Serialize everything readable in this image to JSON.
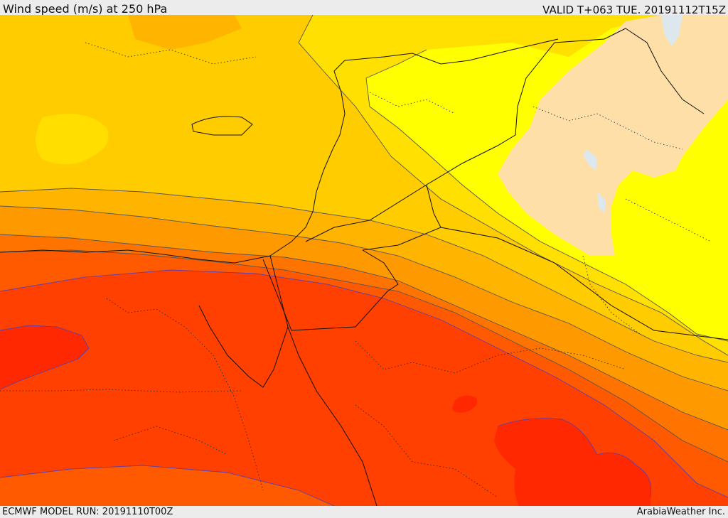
{
  "header": {
    "title": "Wind speed (m/s) at 250 hPa",
    "valid": "VALID T+063 TUE. 20191112T15Z"
  },
  "footer": {
    "model_run": "ECMWF MODEL RUN: 20191110T00Z",
    "brand": "ArabiaWeather Inc."
  },
  "colors": {
    "band_gold": "#ffcc00",
    "band_yellow": "#ffe000",
    "band_bright": "#ffff00",
    "band_amber": "#ffb400",
    "band_orange": "#ff9900",
    "band_dark_orange": "#ff7400",
    "band_red_orange": "#ff5a00",
    "band_red": "#ff4000",
    "band_deep_red": "#ff2800",
    "band_peach": "#ffdfa8",
    "water_pale": "#dde8ee"
  }
}
